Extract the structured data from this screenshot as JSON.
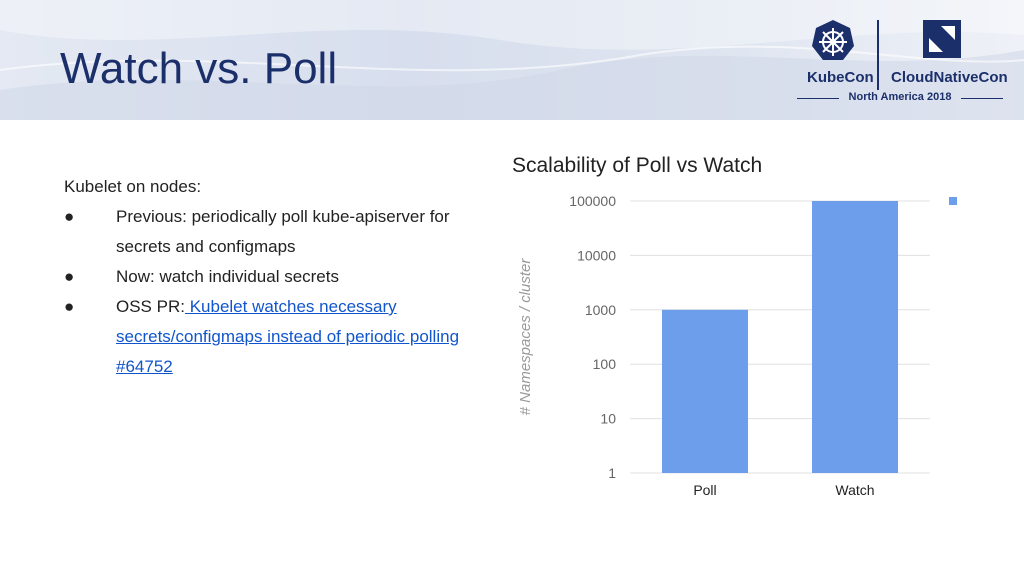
{
  "slide": {
    "title": "Watch vs. Poll",
    "brand": {
      "left": "KubeCon",
      "right": "CloudNativeCon",
      "event": "North America 2018"
    }
  },
  "content": {
    "lead": "Kubelet on nodes:",
    "bullets": [
      {
        "text": "Previous: periodically poll kube-apiserver for secrets and configmaps"
      },
      {
        "text": "Now: watch individual secrets"
      },
      {
        "prefix": "OSS PR:",
        "link": " Kubelet watches necessary secrets/configmaps instead of periodic polling #64752"
      }
    ],
    "bullet_glyph": "●"
  },
  "chart_data": {
    "type": "bar",
    "title": "Scalability of Poll vs Watch",
    "ylabel": "# Namespaces / cluster",
    "xlabel": "",
    "categories": [
      "Poll",
      "Watch"
    ],
    "series": [
      {
        "values": [
          1000,
          100000
        ]
      }
    ],
    "yscale": "log",
    "ylim": [
      1,
      100000
    ],
    "yticks": [
      1,
      10,
      100,
      1000,
      10000,
      100000
    ],
    "ytick_labels": [
      "1",
      "10",
      "100",
      "1000",
      "10000",
      "100000"
    ],
    "grid": true,
    "legend": "top-right",
    "colors": {
      "bar": "#6d9eeb",
      "grid": "#e0e0e0",
      "ticktext": "#666666"
    }
  }
}
